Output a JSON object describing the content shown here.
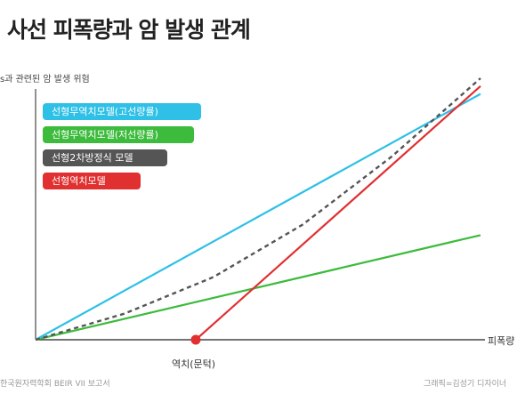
{
  "header": {
    "title": "사선 피폭량과 암 발생 관계"
  },
  "chart_data": {
    "type": "line",
    "title": "사선 피폭량과 암 발생 관계",
    "ylabel": "s과 관련된 암 발생 위험",
    "xlabel": "피폭량",
    "xlim": [
      0,
      1
    ],
    "ylim": [
      0,
      1
    ],
    "grid": false,
    "legend_position": "top-left",
    "threshold": {
      "label": "역치(문턱)",
      "x": 0.36,
      "color": "#e03030"
    },
    "series": [
      {
        "name": "선형무역치모델(고선량률)",
        "color": "#2ec0e6",
        "style": "solid",
        "x": [
          0,
          1
        ],
        "y": [
          0,
          0.94
        ]
      },
      {
        "name": "선형무역치모델(저선량률)",
        "color": "#3cbb3c",
        "style": "solid",
        "x": [
          0,
          1
        ],
        "y": [
          0,
          0.4
        ]
      },
      {
        "name": "선형2차방정식 모델",
        "color": "#555555",
        "style": "dashed",
        "x": [
          0,
          0.2,
          0.4,
          0.6,
          0.8,
          1
        ],
        "y": [
          0,
          0.1,
          0.24,
          0.44,
          0.7,
          1.0
        ]
      },
      {
        "name": "선형역치모델",
        "color": "#e03030",
        "style": "solid",
        "x": [
          0.36,
          1
        ],
        "y": [
          0,
          0.97
        ]
      }
    ]
  },
  "footer": {
    "source": "한국원자력학회 BEIR VII 보고서",
    "credit": "그래픽=김성기 디자이너"
  }
}
